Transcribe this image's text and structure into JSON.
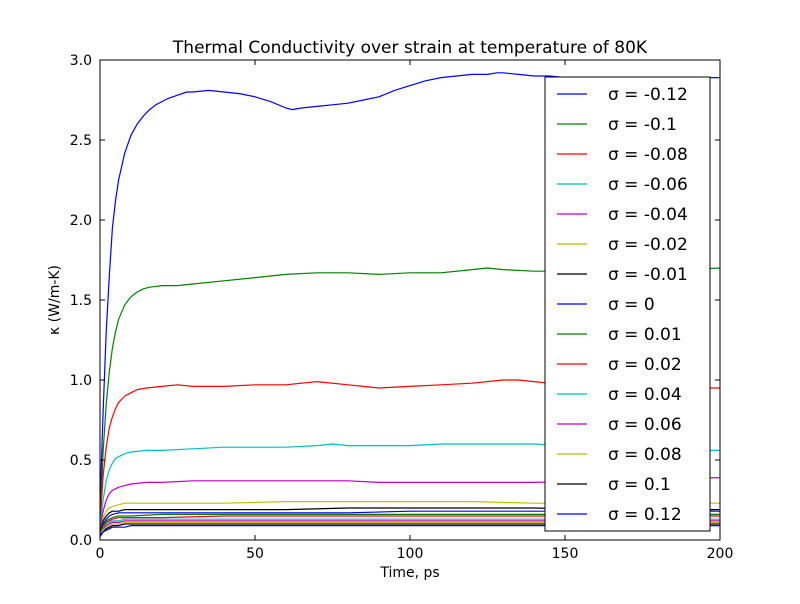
{
  "chart_data": {
    "type": "line",
    "title": "Thermal Conductivity over strain at temperature of 80K",
    "xlabel": "Time, ps",
    "ylabel": "κ (W/m-K)",
    "xlim": [
      0,
      200
    ],
    "ylim": [
      0,
      3.0
    ],
    "x_ticks": [
      "0",
      "50",
      "100",
      "150",
      "200"
    ],
    "y_ticks": [
      "0.0",
      "0.5",
      "1.0",
      "1.5",
      "2.0",
      "2.5",
      "3.0"
    ],
    "grid": false,
    "legend_position": "top-right",
    "series": [
      {
        "name": "σ = -0.12",
        "color": "#0000ff",
        "x": [
          0,
          1,
          2,
          3,
          4,
          5,
          6,
          8,
          10,
          12,
          14,
          16,
          18,
          20,
          22,
          25,
          28,
          30,
          35,
          40,
          45,
          50,
          55,
          60,
          62,
          65,
          70,
          75,
          80,
          85,
          90,
          95,
          100,
          105,
          110,
          115,
          120,
          125,
          128,
          130,
          135,
          140,
          145,
          150,
          155,
          160,
          170,
          180,
          190,
          200
        ],
        "y": [
          0.2,
          0.8,
          1.3,
          1.65,
          1.95,
          2.12,
          2.25,
          2.42,
          2.53,
          2.6,
          2.65,
          2.69,
          2.72,
          2.74,
          2.76,
          2.78,
          2.8,
          2.8,
          2.81,
          2.8,
          2.79,
          2.77,
          2.74,
          2.7,
          2.69,
          2.7,
          2.71,
          2.72,
          2.73,
          2.75,
          2.77,
          2.81,
          2.84,
          2.87,
          2.89,
          2.9,
          2.91,
          2.91,
          2.92,
          2.92,
          2.91,
          2.9,
          2.9,
          2.89,
          2.89,
          2.88,
          2.88,
          2.89,
          2.89,
          2.89
        ]
      },
      {
        "name": "σ = -0.1",
        "color": "#008000",
        "x": [
          0,
          1,
          2,
          3,
          4,
          5,
          6,
          8,
          10,
          12,
          14,
          16,
          20,
          25,
          30,
          40,
          50,
          60,
          70,
          80,
          90,
          100,
          110,
          120,
          125,
          130,
          140,
          150,
          160,
          170,
          180,
          190,
          200
        ],
        "y": [
          0.1,
          0.55,
          0.85,
          1.05,
          1.2,
          1.3,
          1.38,
          1.47,
          1.52,
          1.55,
          1.57,
          1.58,
          1.59,
          1.59,
          1.6,
          1.62,
          1.64,
          1.66,
          1.67,
          1.67,
          1.66,
          1.67,
          1.67,
          1.69,
          1.7,
          1.69,
          1.68,
          1.68,
          1.69,
          1.69,
          1.69,
          1.69,
          1.7
        ]
      },
      {
        "name": "σ = -0.08",
        "color": "#ff0000",
        "x": [
          0,
          1,
          2,
          3,
          4,
          5,
          6,
          8,
          10,
          12,
          15,
          20,
          25,
          30,
          40,
          50,
          60,
          65,
          70,
          80,
          90,
          100,
          110,
          120,
          130,
          135,
          140,
          150,
          160,
          170,
          180,
          190,
          200
        ],
        "y": [
          0.1,
          0.4,
          0.58,
          0.7,
          0.77,
          0.82,
          0.86,
          0.9,
          0.92,
          0.94,
          0.95,
          0.96,
          0.97,
          0.96,
          0.96,
          0.97,
          0.97,
          0.98,
          0.99,
          0.97,
          0.95,
          0.96,
          0.97,
          0.98,
          1.0,
          1.0,
          0.99,
          0.97,
          0.96,
          0.95,
          0.95,
          0.95,
          0.95
        ]
      },
      {
        "name": "σ = -0.06",
        "color": "#00bfbf",
        "x": [
          0,
          1,
          2,
          3,
          4,
          5,
          6,
          8,
          10,
          15,
          20,
          30,
          40,
          50,
          60,
          70,
          75,
          80,
          90,
          100,
          110,
          120,
          130,
          140,
          150,
          160,
          170,
          180,
          190,
          200
        ],
        "y": [
          0.08,
          0.25,
          0.37,
          0.44,
          0.48,
          0.51,
          0.52,
          0.54,
          0.55,
          0.56,
          0.56,
          0.57,
          0.58,
          0.58,
          0.58,
          0.59,
          0.6,
          0.59,
          0.59,
          0.59,
          0.6,
          0.6,
          0.6,
          0.6,
          0.59,
          0.58,
          0.57,
          0.56,
          0.56,
          0.56
        ]
      },
      {
        "name": "σ = -0.04",
        "color": "#bf00bf",
        "x": [
          0,
          1,
          2,
          3,
          4,
          6,
          8,
          10,
          15,
          20,
          30,
          40,
          50,
          60,
          70,
          80,
          90,
          100,
          120,
          140,
          160,
          180,
          200
        ],
        "y": [
          0.06,
          0.18,
          0.25,
          0.29,
          0.31,
          0.33,
          0.34,
          0.35,
          0.36,
          0.36,
          0.37,
          0.37,
          0.37,
          0.37,
          0.37,
          0.37,
          0.36,
          0.36,
          0.36,
          0.36,
          0.37,
          0.38,
          0.39
        ]
      },
      {
        "name": "σ = -0.02",
        "color": "#bfbf00",
        "x": [
          0,
          1,
          2,
          3,
          4,
          6,
          8,
          10,
          15,
          20,
          40,
          60,
          80,
          100,
          120,
          140,
          160,
          180,
          200
        ],
        "y": [
          0.05,
          0.14,
          0.18,
          0.2,
          0.21,
          0.22,
          0.23,
          0.23,
          0.23,
          0.23,
          0.23,
          0.24,
          0.24,
          0.24,
          0.24,
          0.23,
          0.23,
          0.23,
          0.23
        ]
      },
      {
        "name": "σ = -0.01",
        "color": "#000000",
        "x": [
          0,
          1,
          2,
          3,
          4,
          6,
          8,
          10,
          15,
          20,
          40,
          60,
          80,
          100,
          120,
          140,
          160,
          180,
          200
        ],
        "y": [
          0.05,
          0.12,
          0.15,
          0.17,
          0.18,
          0.18,
          0.19,
          0.19,
          0.19,
          0.19,
          0.19,
          0.19,
          0.2,
          0.2,
          0.2,
          0.2,
          0.19,
          0.19,
          0.19
        ]
      },
      {
        "name": "σ = 0",
        "color": "#0000ff",
        "x": [
          0,
          1,
          2,
          3,
          4,
          6,
          8,
          10,
          20,
          40,
          60,
          80,
          100,
          120,
          140,
          160,
          180,
          200
        ],
        "y": [
          0.04,
          0.1,
          0.13,
          0.15,
          0.16,
          0.17,
          0.17,
          0.17,
          0.17,
          0.17,
          0.17,
          0.17,
          0.18,
          0.18,
          0.18,
          0.18,
          0.18,
          0.18
        ]
      },
      {
        "name": "σ = 0.01",
        "color": "#008000",
        "x": [
          0,
          1,
          2,
          3,
          4,
          6,
          8,
          10,
          20,
          40,
          60,
          80,
          100,
          120,
          140,
          160,
          180,
          200
        ],
        "y": [
          0.04,
          0.09,
          0.12,
          0.13,
          0.14,
          0.15,
          0.15,
          0.15,
          0.16,
          0.16,
          0.16,
          0.16,
          0.16,
          0.16,
          0.16,
          0.16,
          0.16,
          0.16
        ]
      },
      {
        "name": "σ = 0.02",
        "color": "#ff0000",
        "x": [
          0,
          1,
          2,
          3,
          4,
          6,
          8,
          10,
          20,
          40,
          60,
          80,
          100,
          120,
          140,
          160,
          180,
          200
        ],
        "y": [
          0.04,
          0.08,
          0.11,
          0.12,
          0.13,
          0.14,
          0.14,
          0.14,
          0.14,
          0.15,
          0.15,
          0.15,
          0.15,
          0.15,
          0.15,
          0.15,
          0.15,
          0.15
        ]
      },
      {
        "name": "σ = 0.04",
        "color": "#00bfbf",
        "x": [
          0,
          1,
          2,
          3,
          4,
          6,
          8,
          10,
          20,
          40,
          60,
          80,
          100,
          120,
          140,
          160,
          180,
          200
        ],
        "y": [
          0.03,
          0.07,
          0.1,
          0.11,
          0.12,
          0.12,
          0.13,
          0.13,
          0.13,
          0.13,
          0.13,
          0.13,
          0.13,
          0.13,
          0.13,
          0.13,
          0.13,
          0.13
        ]
      },
      {
        "name": "σ = 0.06",
        "color": "#bf00bf",
        "x": [
          0,
          1,
          2,
          3,
          4,
          6,
          8,
          10,
          20,
          40,
          60,
          80,
          100,
          120,
          140,
          160,
          180,
          200
        ],
        "y": [
          0.03,
          0.06,
          0.09,
          0.1,
          0.11,
          0.11,
          0.12,
          0.12,
          0.12,
          0.12,
          0.12,
          0.12,
          0.12,
          0.12,
          0.12,
          0.12,
          0.12,
          0.12
        ]
      },
      {
        "name": "σ = 0.08",
        "color": "#bfbf00",
        "x": [
          0,
          1,
          2,
          3,
          4,
          6,
          8,
          10,
          20,
          40,
          60,
          80,
          100,
          120,
          140,
          160,
          180,
          200
        ],
        "y": [
          0.03,
          0.06,
          0.08,
          0.09,
          0.1,
          0.1,
          0.11,
          0.11,
          0.11,
          0.11,
          0.11,
          0.11,
          0.11,
          0.11,
          0.11,
          0.11,
          0.11,
          0.11
        ]
      },
      {
        "name": "σ = 0.1",
        "color": "#000000",
        "x": [
          0,
          1,
          2,
          3,
          4,
          6,
          8,
          10,
          20,
          40,
          60,
          80,
          100,
          120,
          140,
          160,
          180,
          200
        ],
        "y": [
          0.03,
          0.05,
          0.07,
          0.08,
          0.09,
          0.09,
          0.1,
          0.1,
          0.1,
          0.1,
          0.1,
          0.1,
          0.1,
          0.1,
          0.1,
          0.1,
          0.1,
          0.1
        ]
      },
      {
        "name": "σ = 0.12",
        "color": "#0000ff",
        "x": [
          0,
          1,
          2,
          3,
          4,
          6,
          8,
          10,
          20,
          40,
          60,
          80,
          100,
          120,
          140,
          160,
          180,
          200
        ],
        "y": [
          0.02,
          0.05,
          0.06,
          0.07,
          0.08,
          0.08,
          0.08,
          0.09,
          0.09,
          0.09,
          0.09,
          0.09,
          0.09,
          0.09,
          0.09,
          0.09,
          0.09,
          0.09
        ]
      }
    ]
  }
}
